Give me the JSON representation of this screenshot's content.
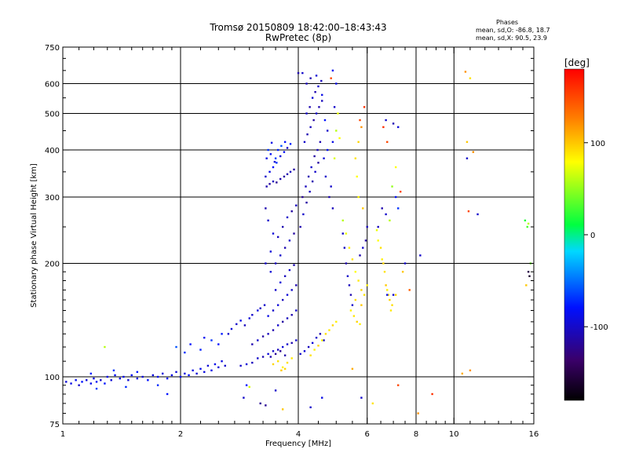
{
  "header": {
    "title_line1": "Tromsø 20150809 18:42:00–18:43:43",
    "title_line2": "RwPretec (8p)",
    "stats_heading": "Phases",
    "stats_line1": "mean, sd,O:  -86.8, 18.7",
    "stats_line2": "mean, sd,X:  90.5, 23.9"
  },
  "colorbar": {
    "unit_label": "[deg]",
    "range": [
      -180,
      180
    ],
    "ticks": [
      "100",
      "0",
      "-100"
    ],
    "tick_values": [
      100,
      0,
      -100
    ]
  },
  "chart_data": {
    "type": "scatter",
    "xlabel": "Frequency [MHz]",
    "ylabel": "Stationary phase Virtual Height [km]",
    "xscale": "log",
    "yscale": "log",
    "xlim": [
      1,
      16
    ],
    "ylim": [
      75,
      750
    ],
    "x_ticks": [
      "1",
      "2",
      "4",
      "6",
      "8",
      "10",
      "16"
    ],
    "x_tick_values": [
      1,
      2,
      4,
      6,
      8,
      10,
      16
    ],
    "x_minor_tick_values": [
      1.1,
      1.2,
      1.3,
      1.4,
      1.5,
      1.6,
      1.7,
      1.8,
      1.9,
      2.25,
      2.5,
      2.75,
      3,
      3.25,
      3.5,
      3.75,
      4.5,
      5,
      5.5,
      6.5,
      7,
      7.5,
      8.5,
      9,
      9.5,
      11,
      12,
      13,
      14,
      15
    ],
    "y_ticks": [
      "75",
      "100",
      "200",
      "300",
      "400",
      "500",
      "600",
      "750"
    ],
    "y_tick_values": [
      75,
      100,
      200,
      300,
      400,
      500,
      600,
      750
    ],
    "y_minor_tick_values": [
      80,
      85,
      90,
      95,
      110,
      120,
      130,
      140,
      150,
      160,
      170,
      180,
      190,
      250,
      350,
      450,
      550,
      650,
      700
    ],
    "x_grid_values": [
      2,
      4,
      6,
      8,
      10
    ],
    "y_grid_values": [
      100,
      200,
      300,
      400,
      500,
      600
    ],
    "grid": true,
    "colorscale": [
      "#000000",
      "#3a0068",
      "#0010ff",
      "#00d8ff",
      "#00ff40",
      "#ffff00",
      "#ff8000",
      "#ff0000"
    ],
    "points": [
      [
        1.02,
        97,
        -95
      ],
      [
        1.05,
        96,
        -90
      ],
      [
        1.08,
        98,
        -85
      ],
      [
        1.1,
        95,
        -100
      ],
      [
        1.12,
        97,
        -80
      ],
      [
        1.15,
        98,
        -95
      ],
      [
        1.18,
        96,
        -88
      ],
      [
        1.2,
        99,
        -92
      ],
      [
        1.22,
        97,
        -85
      ],
      [
        1.25,
        98,
        -100
      ],
      [
        1.28,
        96,
        -78
      ],
      [
        1.3,
        100,
        -90
      ],
      [
        1.33,
        98,
        -95
      ],
      [
        1.36,
        101,
        -85
      ],
      [
        1.4,
        99,
        -92
      ],
      [
        1.43,
        100,
        -88
      ],
      [
        1.47,
        98,
        -96
      ],
      [
        1.5,
        101,
        -84
      ],
      [
        1.55,
        99,
        -90
      ],
      [
        1.6,
        100,
        -95
      ],
      [
        1.65,
        98,
        -80
      ],
      [
        1.7,
        101,
        -92
      ],
      [
        1.75,
        100,
        -86
      ],
      [
        1.8,
        102,
        -94
      ],
      [
        1.85,
        99,
        -82
      ],
      [
        1.9,
        101,
        -90
      ],
      [
        1.95,
        103,
        -95
      ],
      [
        2.0,
        100,
        -88
      ],
      [
        2.05,
        102,
        -92
      ],
      [
        2.1,
        101,
        -80
      ],
      [
        2.15,
        104,
        -90
      ],
      [
        2.2,
        102,
        -96
      ],
      [
        2.25,
        105,
        -86
      ],
      [
        2.3,
        103,
        -92
      ],
      [
        2.35,
        107,
        -95
      ],
      [
        2.4,
        104,
        -90
      ],
      [
        2.45,
        108,
        -88
      ],
      [
        2.5,
        106,
        -96
      ],
      [
        2.55,
        110,
        -92
      ],
      [
        2.6,
        107,
        -100
      ],
      [
        1.18,
        102,
        -75
      ],
      [
        1.35,
        104,
        -70
      ],
      [
        1.55,
        103,
        -78
      ],
      [
        1.75,
        95,
        -72
      ],
      [
        1.22,
        93,
        -65
      ],
      [
        1.45,
        94,
        -72
      ],
      [
        1.28,
        120,
        60
      ],
      [
        1.85,
        90,
        -80
      ],
      [
        1.95,
        120,
        -60
      ],
      [
        2.05,
        116,
        -70
      ],
      [
        2.12,
        122,
        -80
      ],
      [
        2.25,
        118,
        -75
      ],
      [
        2.3,
        127,
        -85
      ],
      [
        2.4,
        125,
        -70
      ],
      [
        2.5,
        122,
        -80
      ],
      [
        2.55,
        130,
        -78
      ],
      [
        2.65,
        130,
        -100
      ],
      [
        2.7,
        134,
        -95
      ],
      [
        2.78,
        138,
        -100
      ],
      [
        2.85,
        141,
        -90
      ],
      [
        2.92,
        137,
        -105
      ],
      [
        3.0,
        143,
        -95
      ],
      [
        3.05,
        146,
        -100
      ],
      [
        3.15,
        150,
        -92
      ],
      [
        3.2,
        152,
        -105
      ],
      [
        3.28,
        155,
        -100
      ],
      [
        2.85,
        107,
        -100
      ],
      [
        2.95,
        108,
        -95
      ],
      [
        3.05,
        109,
        -105
      ],
      [
        3.15,
        112,
        -100
      ],
      [
        3.25,
        113,
        -110
      ],
      [
        3.35,
        115,
        -95
      ],
      [
        3.45,
        117,
        -100
      ],
      [
        3.55,
        118,
        -105
      ],
      [
        3.65,
        120,
        -95
      ],
      [
        3.75,
        122,
        -100
      ],
      [
        3.85,
        123,
        -110
      ],
      [
        3.95,
        125,
        -100
      ],
      [
        3.05,
        122,
        -110
      ],
      [
        3.15,
        125,
        -100
      ],
      [
        3.25,
        128,
        -115
      ],
      [
        3.35,
        130,
        -105
      ],
      [
        3.45,
        133,
        -110
      ],
      [
        3.55,
        137,
        -100
      ],
      [
        3.65,
        140,
        -115
      ],
      [
        3.75,
        143,
        -105
      ],
      [
        3.85,
        146,
        -110
      ],
      [
        3.95,
        150,
        -100
      ],
      [
        3.4,
        113,
        -110
      ],
      [
        3.5,
        115,
        -118
      ],
      [
        3.6,
        117,
        -120
      ],
      [
        3.7,
        114,
        -112
      ],
      [
        3.45,
        108,
        95
      ],
      [
        3.55,
        110,
        90
      ],
      [
        3.65,
        106,
        85
      ],
      [
        3.75,
        109,
        92
      ],
      [
        3.85,
        112,
        88
      ],
      [
        3.62,
        104,
        100
      ],
      [
        3.7,
        105,
        95
      ],
      [
        4.05,
        115,
        -100
      ],
      [
        4.15,
        117,
        -95
      ],
      [
        4.25,
        120,
        -105
      ],
      [
        4.35,
        123,
        -95
      ],
      [
        4.45,
        127,
        -100
      ],
      [
        4.55,
        130,
        -110
      ],
      [
        4.65,
        125,
        -100
      ],
      [
        4.3,
        114,
        90
      ],
      [
        4.4,
        118,
        85
      ],
      [
        4.5,
        121,
        95
      ],
      [
        4.6,
        125,
        80
      ],
      [
        4.7,
        130,
        92
      ],
      [
        4.8,
        133,
        88
      ],
      [
        4.9,
        137,
        95
      ],
      [
        5.0,
        140,
        85
      ],
      [
        3.35,
        145,
        -90
      ],
      [
        3.45,
        150,
        -100
      ],
      [
        3.55,
        155,
        -95
      ],
      [
        3.65,
        160,
        -105
      ],
      [
        3.75,
        165,
        -95
      ],
      [
        3.85,
        170,
        -100
      ],
      [
        3.95,
        175,
        -110
      ],
      [
        3.5,
        170,
        -100
      ],
      [
        3.6,
        178,
        -95
      ],
      [
        3.7,
        185,
        -105
      ],
      [
        3.8,
        192,
        -100
      ],
      [
        3.9,
        198,
        -110
      ],
      [
        3.4,
        190,
        -95
      ],
      [
        3.5,
        200,
        -105
      ],
      [
        3.6,
        210,
        -100
      ],
      [
        3.7,
        220,
        -110
      ],
      [
        3.8,
        230,
        -100
      ],
      [
        3.9,
        240,
        -115
      ],
      [
        3.3,
        200,
        -100
      ],
      [
        3.4,
        215,
        -95
      ],
      [
        3.55,
        235,
        -105
      ],
      [
        3.65,
        250,
        -110
      ],
      [
        3.75,
        265,
        -100
      ],
      [
        3.85,
        275,
        -115
      ],
      [
        3.95,
        285,
        -105
      ],
      [
        3.45,
        240,
        -95
      ],
      [
        3.35,
        260,
        -100
      ],
      [
        3.3,
        280,
        -110
      ],
      [
        3.32,
        320,
        -110
      ],
      [
        3.38,
        325,
        -115
      ],
      [
        3.45,
        330,
        -105
      ],
      [
        3.52,
        328,
        -120
      ],
      [
        3.6,
        335,
        -110
      ],
      [
        3.68,
        340,
        -115
      ],
      [
        3.75,
        345,
        -110
      ],
      [
        3.82,
        350,
        -105
      ],
      [
        3.9,
        355,
        -115
      ],
      [
        3.3,
        340,
        -100
      ],
      [
        3.38,
        350,
        -90
      ],
      [
        3.45,
        360,
        -80
      ],
      [
        3.52,
        370,
        -70
      ],
      [
        3.6,
        385,
        -95
      ],
      [
        3.68,
        395,
        -85
      ],
      [
        3.75,
        405,
        -100
      ],
      [
        3.82,
        415,
        -75
      ],
      [
        3.32,
        380,
        -90
      ],
      [
        3.4,
        390,
        -85
      ],
      [
        3.48,
        372,
        -95
      ],
      [
        3.55,
        400,
        -75
      ],
      [
        3.62,
        410,
        -60
      ],
      [
        3.7,
        420,
        -80
      ],
      [
        3.35,
        400,
        -70
      ],
      [
        3.42,
        418,
        -90
      ],
      [
        3.5,
        380,
        -65
      ],
      [
        4.05,
        250,
        -110
      ],
      [
        4.12,
        270,
        -100
      ],
      [
        4.2,
        290,
        -115
      ],
      [
        4.28,
        310,
        -105
      ],
      [
        4.35,
        330,
        -110
      ],
      [
        4.42,
        350,
        -100
      ],
      [
        4.5,
        370,
        -115
      ],
      [
        4.1,
        300,
        -120
      ],
      [
        4.18,
        320,
        -105
      ],
      [
        4.25,
        340,
        -110
      ],
      [
        4.32,
        360,
        -100
      ],
      [
        4.4,
        385,
        -115
      ],
      [
        4.48,
        400,
        -105
      ],
      [
        4.55,
        420,
        -110
      ],
      [
        4.15,
        420,
        -100
      ],
      [
        4.22,
        440,
        -110
      ],
      [
        4.3,
        460,
        -105
      ],
      [
        4.38,
        480,
        -115
      ],
      [
        4.45,
        500,
        -100
      ],
      [
        4.52,
        520,
        -110
      ],
      [
        4.6,
        540,
        -105
      ],
      [
        4.2,
        500,
        -100
      ],
      [
        4.28,
        520,
        -110
      ],
      [
        4.35,
        550,
        -95
      ],
      [
        4.42,
        570,
        -110
      ],
      [
        4.5,
        590,
        -100
      ],
      [
        4.58,
        610,
        -105
      ],
      [
        4.3,
        620,
        -110
      ],
      [
        4.1,
        640,
        -100
      ],
      [
        4.2,
        600,
        -105
      ],
      [
        4.45,
        630,
        -95
      ],
      [
        4.0,
        640,
        -110
      ],
      [
        4.6,
        560,
        -90
      ],
      [
        4.68,
        480,
        -80
      ],
      [
        4.75,
        450,
        -100
      ],
      [
        4.65,
        380,
        -95
      ],
      [
        4.7,
        340,
        -100
      ],
      [
        4.8,
        300,
        -110
      ],
      [
        4.9,
        280,
        -105
      ],
      [
        4.85,
        320,
        -100
      ],
      [
        4.75,
        400,
        -85
      ],
      [
        4.9,
        420,
        -90
      ],
      [
        4.95,
        380,
        70
      ],
      [
        5.0,
        450,
        60
      ],
      [
        5.05,
        500,
        75
      ],
      [
        5.1,
        430,
        80
      ],
      [
        4.95,
        520,
        -100
      ],
      [
        5.0,
        600,
        -90
      ],
      [
        4.9,
        650,
        -85
      ],
      [
        4.85,
        620,
        150
      ],
      [
        5.2,
        240,
        -100
      ],
      [
        5.25,
        220,
        -105
      ],
      [
        5.3,
        200,
        -110
      ],
      [
        5.35,
        185,
        -100
      ],
      [
        5.4,
        175,
        -105
      ],
      [
        5.45,
        165,
        -110
      ],
      [
        5.5,
        155,
        -100
      ],
      [
        5.2,
        260,
        60
      ],
      [
        5.3,
        240,
        75
      ],
      [
        5.4,
        220,
        85
      ],
      [
        5.5,
        205,
        90
      ],
      [
        5.6,
        190,
        80
      ],
      [
        5.7,
        180,
        88
      ],
      [
        5.8,
        170,
        95
      ],
      [
        5.6,
        160,
        92
      ],
      [
        5.45,
        150,
        85
      ],
      [
        5.55,
        145,
        90
      ],
      [
        5.65,
        140,
        95
      ],
      [
        5.75,
        138,
        85
      ],
      [
        5.8,
        155,
        100
      ],
      [
        5.9,
        165,
        90
      ],
      [
        6.0,
        175,
        85
      ],
      [
        5.75,
        210,
        -110
      ],
      [
        5.85,
        220,
        -100
      ],
      [
        5.95,
        230,
        -115
      ],
      [
        6.0,
        250,
        -105
      ],
      [
        5.85,
        280,
        100
      ],
      [
        5.7,
        300,
        85
      ],
      [
        5.65,
        340,
        80
      ],
      [
        5.6,
        380,
        90
      ],
      [
        5.7,
        420,
        95
      ],
      [
        5.8,
        460,
        120
      ],
      [
        5.75,
        480,
        150
      ],
      [
        5.9,
        520,
        160
      ],
      [
        6.35,
        245,
        75
      ],
      [
        6.4,
        230,
        80
      ],
      [
        6.5,
        220,
        90
      ],
      [
        6.55,
        205,
        85
      ],
      [
        6.6,
        200,
        95
      ],
      [
        6.65,
        190,
        90
      ],
      [
        6.7,
        175,
        100
      ],
      [
        6.75,
        170,
        85
      ],
      [
        6.8,
        165,
        90
      ],
      [
        6.85,
        160,
        95
      ],
      [
        6.9,
        150,
        88
      ],
      [
        6.95,
        155,
        92
      ],
      [
        7.0,
        165,
        -100
      ],
      [
        6.75,
        165,
        -90
      ],
      [
        7.1,
        165,
        95
      ],
      [
        6.4,
        250,
        -105
      ],
      [
        6.55,
        280,
        -110
      ],
      [
        6.7,
        270,
        -100
      ],
      [
        6.85,
        260,
        60
      ],
      [
        6.95,
        320,
        50
      ],
      [
        7.1,
        360,
        80
      ],
      [
        7.2,
        280,
        -70
      ],
      [
        6.6,
        460,
        160
      ],
      [
        6.75,
        420,
        150
      ],
      [
        6.7,
        480,
        -100
      ],
      [
        7.0,
        470,
        -110
      ],
      [
        7.2,
        460,
        -95
      ],
      [
        7.1,
        300,
        -80
      ],
      [
        7.3,
        310,
        150
      ],
      [
        7.5,
        200,
        -100
      ],
      [
        7.7,
        170,
        140
      ],
      [
        7.4,
        190,
        100
      ],
      [
        7.2,
        95,
        150
      ],
      [
        8.2,
        210,
        -100
      ],
      [
        8.8,
        90,
        160
      ],
      [
        8.1,
        80,
        120
      ],
      [
        10.8,
        380,
        -100
      ],
      [
        11.2,
        395,
        120
      ],
      [
        10.7,
        645,
        120
      ],
      [
        11.0,
        620,
        90
      ],
      [
        11.5,
        270,
        -100
      ],
      [
        10.9,
        275,
        150
      ],
      [
        10.8,
        420,
        100
      ],
      [
        11.0,
        104,
        120
      ],
      [
        10.5,
        102,
        110
      ],
      [
        15.4,
        250,
        30
      ],
      [
        15.5,
        255,
        60
      ],
      [
        15.5,
        190,
        -150
      ],
      [
        15.6,
        185,
        -160
      ],
      [
        15.3,
        175,
        100
      ],
      [
        15.7,
        200,
        40
      ],
      [
        15.2,
        260,
        20
      ],
      [
        2.9,
        88,
        -100
      ],
      [
        3.2,
        85,
        -120
      ],
      [
        3.3,
        84,
        -120
      ],
      [
        3.65,
        82,
        100
      ],
      [
        4.3,
        83,
        -100
      ],
      [
        4.6,
        88,
        -90
      ],
      [
        5.8,
        88,
        -100
      ],
      [
        6.2,
        85,
        90
      ],
      [
        2.95,
        95,
        -80
      ],
      [
        3.0,
        94,
        70
      ],
      [
        3.5,
        92,
        -100
      ],
      [
        5.5,
        105,
        110
      ]
    ]
  }
}
